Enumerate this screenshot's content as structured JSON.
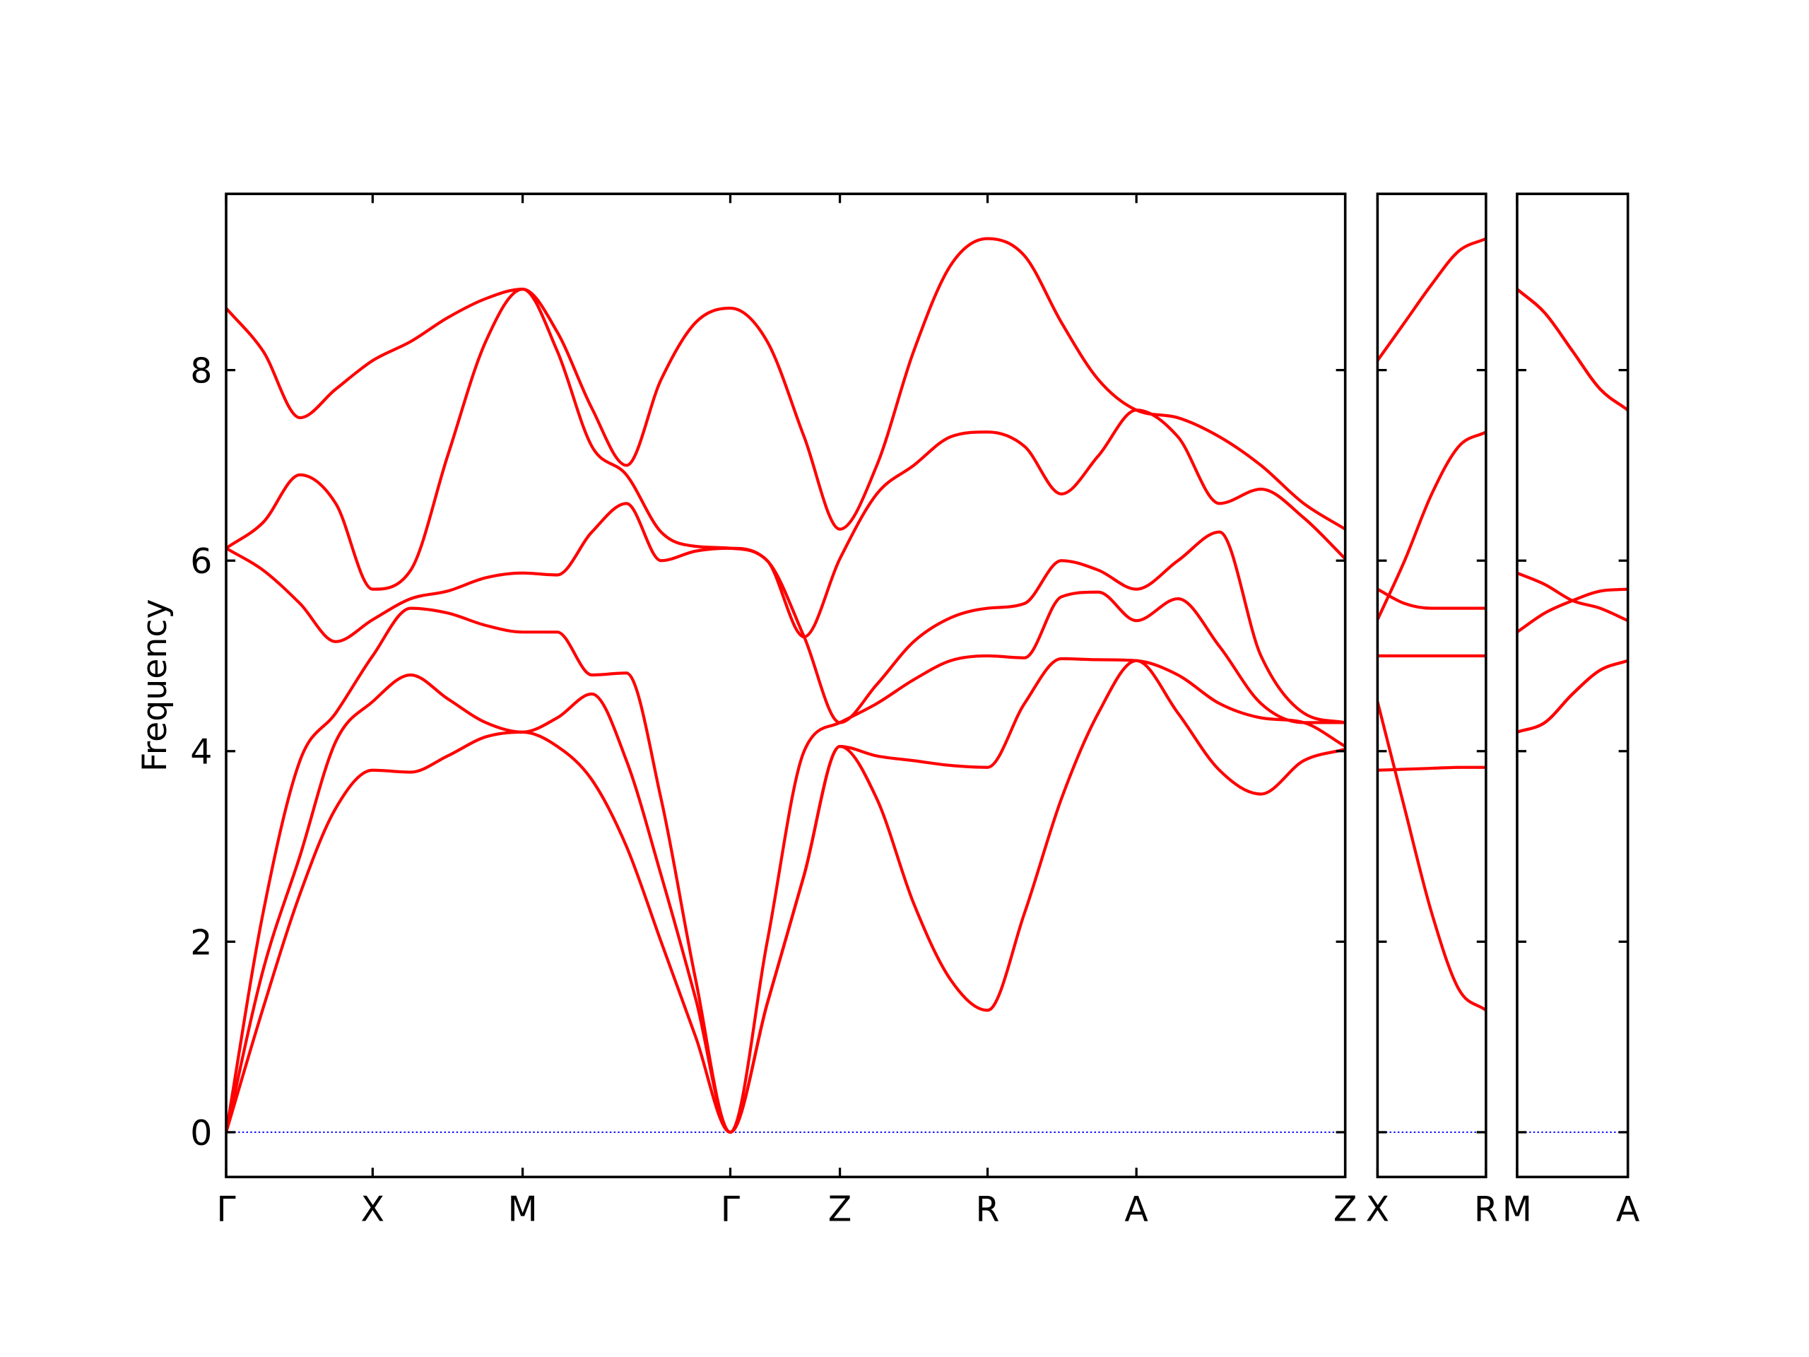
{
  "chart_data": [
    {
      "type": "line",
      "ylabel": "Frequency",
      "x": [
        0,
        0.32,
        0.64,
        0.95,
        1.27,
        1.6,
        1.92,
        2.25,
        2.57,
        2.87,
        3.17,
        3.47,
        3.77,
        4.07,
        4.37,
        4.69,
        5.01,
        5.32,
        5.64,
        5.96,
        6.28,
        6.6,
        6.92,
        7.24,
        7.56,
        7.89,
        8.25,
        8.61,
        8.97,
        9.34,
        9.7
      ],
      "series": [
        {
          "color": "#ff0000",
          "values": [
            0,
            1.3,
            2.5,
            3.4,
            3.8,
            3.78,
            3.95,
            4.15,
            4.2,
            4.05,
            3.7,
            3.0,
            2.0,
            1.0,
            0,
            1.35,
            2.7,
            4.05,
            3.5,
            2.4,
            1.6,
            1.28,
            2.3,
            3.5,
            4.4,
            4.95,
            4.4,
            3.8,
            3.55,
            3.9,
            4.02
          ]
        },
        {
          "color": "#ff0000",
          "values": [
            0,
            1.7,
            2.9,
            4.1,
            4.52,
            4.8,
            4.55,
            4.3,
            4.2,
            4.35,
            4.6,
            3.9,
            2.7,
            1.4,
            0,
            1.35,
            2.7,
            4.05,
            3.95,
            3.9,
            3.85,
            3.83,
            4.5,
            4.97,
            4.96,
            4.95,
            4.8,
            4.5,
            4.35,
            4.3,
            4.05
          ]
        },
        {
          "color": "#ff0000",
          "values": [
            0,
            2.3,
            3.9,
            4.4,
            5.0,
            5.5,
            5.45,
            5.32,
            5.25,
            5.25,
            4.8,
            4.82,
            3.5,
            1.6,
            0,
            2.0,
            4.0,
            4.3,
            4.5,
            4.75,
            4.95,
            5.0,
            4.98,
            5.62,
            5.67,
            5.37,
            5.6,
            5.1,
            4.5,
            4.3,
            4.3
          ]
        },
        {
          "color": "#ff0000",
          "values": [
            6.13,
            5.9,
            5.55,
            5.15,
            5.38,
            5.6,
            5.68,
            5.82,
            5.87,
            5.85,
            6.3,
            6.6,
            6.0,
            6.1,
            6.13,
            6.0,
            5.2,
            4.3,
            4.7,
            5.15,
            5.4,
            5.5,
            5.55,
            6.0,
            5.9,
            5.7,
            6.0,
            6.3,
            5.0,
            4.4,
            4.3
          ]
        },
        {
          "color": "#ff0000",
          "values": [
            6.13,
            6.4,
            6.9,
            6.6,
            5.7,
            5.9,
            7.1,
            8.3,
            8.85,
            8.2,
            7.2,
            6.9,
            6.3,
            6.15,
            6.13,
            6.0,
            5.2,
            6.02,
            6.7,
            7.0,
            7.3,
            7.35,
            7.2,
            6.7,
            7.1,
            7.58,
            7.3,
            6.6,
            6.75,
            6.45,
            6.02
          ]
        },
        {
          "color": "#ff0000",
          "values": [
            8.65,
            8.2,
            7.5,
            7.8,
            8.1,
            8.3,
            8.55,
            8.75,
            8.85,
            8.4,
            7.6,
            7.0,
            7.9,
            8.5,
            8.65,
            8.3,
            7.3,
            6.33,
            7.0,
            8.2,
            9.1,
            9.38,
            9.2,
            8.5,
            7.9,
            7.58,
            7.5,
            7.3,
            7.0,
            6.6,
            6.33
          ]
        }
      ],
      "xlim": [
        0,
        9.7
      ],
      "xticks": [
        {
          "value": 0,
          "label": "Γ"
        },
        {
          "value": 1.27,
          "label": "X"
        },
        {
          "value": 2.57,
          "label": "M"
        },
        {
          "value": 4.37,
          "label": "Γ"
        },
        {
          "value": 5.32,
          "label": "Z"
        },
        {
          "value": 6.6,
          "label": "R"
        },
        {
          "value": 7.89,
          "label": "A"
        },
        {
          "value": 9.7,
          "label": "Z"
        }
      ],
      "ylim": [
        -0.47,
        9.85
      ],
      "yticks": [
        0,
        2,
        4,
        6,
        8
      ],
      "ytick_labels": true,
      "hline": {
        "value": 0,
        "color": "#0000ff",
        "style": "dotted"
      }
    },
    {
      "type": "line",
      "x": [
        0,
        0.235,
        0.47,
        0.705,
        0.94
      ],
      "series": [
        {
          "color": "#ff0000",
          "values": [
            4.52,
            3.4,
            2.3,
            1.5,
            1.28
          ]
        },
        {
          "color": "#ff0000",
          "values": [
            3.8,
            3.81,
            3.82,
            3.83,
            3.83
          ]
        },
        {
          "color": "#ff0000",
          "values": [
            5.0,
            5.0,
            5.0,
            5.0,
            5.0
          ]
        },
        {
          "color": "#ff0000",
          "values": [
            5.7,
            5.55,
            5.5,
            5.5,
            5.5
          ]
        },
        {
          "color": "#ff0000",
          "values": [
            5.38,
            6.0,
            6.7,
            7.2,
            7.35
          ]
        },
        {
          "color": "#ff0000",
          "values": [
            8.1,
            8.5,
            8.9,
            9.25,
            9.38
          ]
        }
      ],
      "xlim": [
        0,
        0.94
      ],
      "xticks": [
        {
          "value": 0,
          "label": "X"
        },
        {
          "value": 0.94,
          "label": "R"
        }
      ],
      "ylim": [
        -0.47,
        9.85
      ],
      "yticks": [
        0,
        2,
        4,
        6,
        8
      ],
      "ytick_labels": false,
      "hline": {
        "value": 0,
        "color": "#0000ff",
        "style": "dotted"
      }
    },
    {
      "type": "line",
      "x": [
        0,
        0.24,
        0.48,
        0.72,
        0.96
      ],
      "series": [
        {
          "color": "#ff0000",
          "values": [
            4.2,
            4.3,
            4.6,
            4.85,
            4.95
          ]
        },
        {
          "color": "#ff0000",
          "values": [
            4.2,
            4.3,
            4.6,
            4.85,
            4.95
          ]
        },
        {
          "color": "#ff0000",
          "values": [
            5.25,
            5.45,
            5.58,
            5.68,
            5.7
          ]
        },
        {
          "color": "#ff0000",
          "values": [
            5.87,
            5.75,
            5.58,
            5.5,
            5.37
          ]
        },
        {
          "color": "#ff0000",
          "values": [
            8.85,
            8.6,
            8.2,
            7.8,
            7.58
          ]
        },
        {
          "color": "#ff0000",
          "values": [
            8.85,
            8.6,
            8.2,
            7.8,
            7.58
          ]
        }
      ],
      "xlim": [
        0,
        0.96
      ],
      "xticks": [
        {
          "value": 0,
          "label": "M"
        },
        {
          "value": 0.96,
          "label": "A"
        }
      ],
      "ylim": [
        -0.47,
        9.85
      ],
      "yticks": [
        0,
        2,
        4,
        6,
        8
      ],
      "ytick_labels": false,
      "hline": {
        "value": 0,
        "color": "#0000ff",
        "style": "dotted"
      }
    }
  ]
}
